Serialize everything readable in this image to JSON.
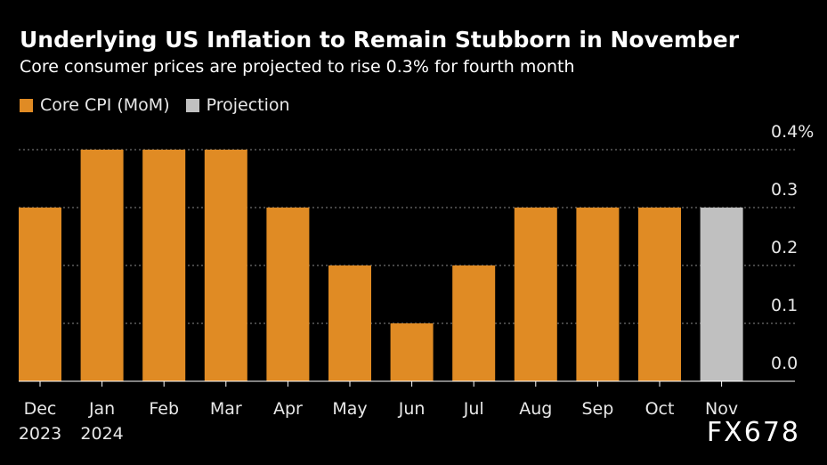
{
  "chart_data": {
    "type": "bar",
    "title": "Underlying US Inflation to Remain Stubborn in November",
    "subtitle": "Core consumer prices are projected to rise 0.3% for fourth month",
    "categories": [
      {
        "month": "Dec",
        "year": "2023"
      },
      {
        "month": "Jan",
        "year": "2024"
      },
      {
        "month": "Feb",
        "year": ""
      },
      {
        "month": "Mar",
        "year": ""
      },
      {
        "month": "Apr",
        "year": ""
      },
      {
        "month": "May",
        "year": ""
      },
      {
        "month": "Jun",
        "year": ""
      },
      {
        "month": "Jul",
        "year": ""
      },
      {
        "month": "Aug",
        "year": ""
      },
      {
        "month": "Sep",
        "year": ""
      },
      {
        "month": "Oct",
        "year": ""
      },
      {
        "month": "Nov",
        "year": ""
      }
    ],
    "series": [
      {
        "name": "Core CPI (MoM)",
        "color": "#e08b24",
        "values": [
          0.3,
          0.4,
          0.4,
          0.4,
          0.3,
          0.2,
          0.1,
          0.2,
          0.3,
          0.3,
          0.3,
          null
        ]
      },
      {
        "name": "Projection",
        "color": "#c0c0c0",
        "values": [
          null,
          null,
          null,
          null,
          null,
          null,
          null,
          null,
          null,
          null,
          null,
          0.3
        ]
      }
    ],
    "ylim": [
      0,
      0.4
    ],
    "yticks": [
      {
        "value": 0.0,
        "label": "0.0"
      },
      {
        "value": 0.1,
        "label": "0.1"
      },
      {
        "value": 0.2,
        "label": "0.2"
      },
      {
        "value": 0.3,
        "label": "0.3"
      },
      {
        "value": 0.4,
        "label": "0.4%"
      }
    ],
    "grid": true,
    "legend": "top-left"
  },
  "watermark": "FX678"
}
